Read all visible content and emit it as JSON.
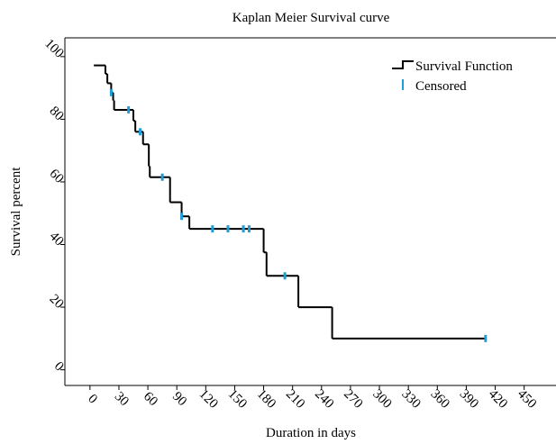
{
  "chart_data": {
    "type": "step",
    "title": "Kaplan Meier Survival curve",
    "x_label": "Duration in days",
    "y_label": "Survival percent",
    "xlim": [
      -26,
      483
    ],
    "ylim": [
      -5,
      106
    ],
    "xticks": [
      0,
      30,
      60,
      90,
      120,
      150,
      180,
      210,
      240,
      270,
      300,
      330,
      360,
      390,
      420,
      450
    ],
    "yticks": [
      0,
      20,
      40,
      60,
      80,
      100
    ],
    "legend": "upper right",
    "series": [
      {
        "name": "Survival Function",
        "color": "#000000",
        "x": [
          4,
          16,
          18,
          22,
          24,
          25,
          45,
          47,
          55,
          61,
          62,
          83,
          95,
          103,
          180,
          183,
          216,
          251,
          410
        ],
        "values": [
          97.2,
          94.5,
          91.5,
          88.5,
          86,
          83,
          79.5,
          76,
          72,
          65,
          61.5,
          53.5,
          49,
          45,
          37.5,
          30,
          20,
          10,
          10
        ]
      },
      {
        "name": "Censored",
        "color": "#1e9ed8",
        "x": [
          22,
          40,
          52,
          75,
          95,
          127,
          143,
          159,
          165,
          202,
          410
        ],
        "values": [
          88.5,
          83,
          76,
          61.5,
          49,
          45,
          45,
          45,
          45,
          30,
          10
        ]
      }
    ]
  }
}
